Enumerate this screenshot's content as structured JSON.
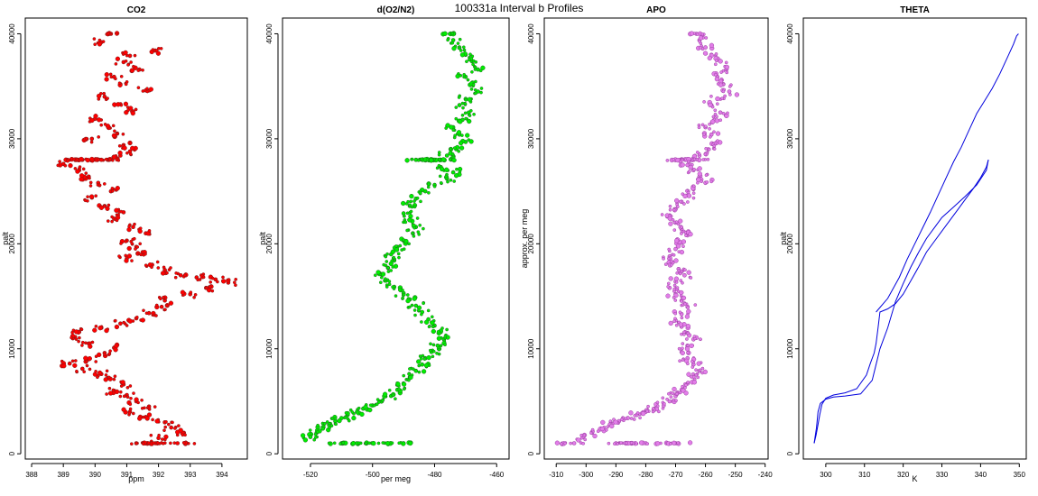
{
  "figure": {
    "title": "100331a   Interval b Profiles"
  },
  "chart_data": [
    {
      "type": "scatter",
      "title": "CO2",
      "xlabel": "ppm",
      "ylabel": "palt",
      "xlim": [
        387.8,
        394.8
      ],
      "ylim": [
        -500,
        41500
      ],
      "xticks": [
        388,
        389,
        390,
        391,
        392,
        393,
        394
      ],
      "yticks": [
        0,
        10000,
        20000,
        30000,
        40000
      ],
      "grid": false,
      "color": "#ff0000",
      "edge": "#7a1a1a",
      "x": [
        390.5,
        390.2,
        391.9,
        391.1,
        390.9,
        391.4,
        390.6,
        390.8,
        391.6,
        390.3,
        390.8,
        391.2,
        390.0,
        390.4,
        390.7,
        389.9,
        390.9,
        391.1,
        390.8,
        390.4,
        390.2,
        389.6,
        389.4,
        389.0,
        389.5,
        389.8,
        390.1,
        390.5,
        389.9,
        390.3,
        390.9,
        390.6,
        391.2,
        391.6,
        391.0,
        391.3,
        391.5,
        391.0,
        391.8,
        392.2,
        392.7,
        393.2,
        393.8,
        394.2,
        393.5,
        393.0,
        392.2,
        392.1,
        391.7,
        391.3,
        390.8,
        390.2,
        389.5,
        389.3,
        389.8,
        390.6,
        390.3,
        389.8,
        389.2,
        389.6,
        390.2,
        390.4,
        390.9,
        390.6,
        391.0,
        391.3,
        391.7,
        391.1,
        391.6,
        392.2,
        392.4,
        392.8,
        392.0,
        391.3,
        392.6,
        391.9
      ],
      "y": [
        40000,
        39200,
        38400,
        37900,
        37300,
        36600,
        35900,
        35200,
        34600,
        34000,
        33300,
        32600,
        31900,
        31200,
        30500,
        30000,
        29400,
        28800,
        28400,
        28000,
        28000,
        28000,
        28000,
        27600,
        27000,
        26400,
        25800,
        25000,
        24400,
        23600,
        23000,
        22400,
        21600,
        21000,
        20300,
        19700,
        19200,
        18600,
        18000,
        17500,
        17000,
        16800,
        16600,
        16300,
        15800,
        15200,
        14600,
        14000,
        13400,
        12900,
        12400,
        12000,
        11600,
        11000,
        10500,
        10100,
        9600,
        9000,
        8600,
        8100,
        7600,
        7200,
        6600,
        6000,
        5600,
        5000,
        4500,
        4000,
        3500,
        3000,
        2500,
        2000,
        1500,
        1000,
        1000,
        1000
      ]
    },
    {
      "type": "scatter",
      "title": "d(O2/N2)",
      "xlabel": "per meg",
      "ylabel": "palt",
      "xlim": [
        -529,
        -456
      ],
      "ylim": [
        -500,
        41500
      ],
      "xticks": [
        -520,
        -500,
        -480,
        -460
      ],
      "yticks": [
        0,
        10000,
        20000,
        30000,
        40000
      ],
      "grid": false,
      "color": "#00ee00",
      "edge": "#1f6a1f",
      "x": [
        -475,
        -474,
        -472,
        -470,
        -468,
        -466,
        -470,
        -468,
        -466,
        -470,
        -472,
        -469,
        -471,
        -474,
        -472,
        -470,
        -473,
        -476,
        -478,
        -480,
        -482,
        -484,
        -486,
        -478,
        -474,
        -476,
        -480,
        -483,
        -486,
        -488,
        -490,
        -488,
        -486,
        -487,
        -490,
        -492,
        -494,
        -493,
        -495,
        -497,
        -496,
        -493,
        -490,
        -488,
        -486,
        -484,
        -482,
        -480,
        -478,
        -477,
        -479,
        -481,
        -483,
        -484,
        -486,
        -488,
        -490,
        -492,
        -494,
        -497,
        -500,
        -503,
        -505,
        -508,
        -510,
        -512,
        -514,
        -516,
        -518,
        -520,
        -510,
        -500,
        -490,
        -505
      ],
      "y": [
        40000,
        39400,
        38700,
        38000,
        37400,
        36600,
        35900,
        35200,
        34500,
        33800,
        33200,
        32500,
        31800,
        31100,
        30400,
        29700,
        29000,
        28400,
        28000,
        28000,
        28000,
        28000,
        28000,
        27300,
        26800,
        26200,
        25600,
        25000,
        24300,
        23600,
        22900,
        22300,
        21600,
        21000,
        20300,
        19700,
        19000,
        18400,
        17700,
        17100,
        16500,
        15900,
        15300,
        14700,
        14100,
        13500,
        12800,
        12200,
        11600,
        10900,
        10300,
        9700,
        9100,
        8500,
        7900,
        7300,
        6700,
        6100,
        5500,
        5000,
        4600,
        4300,
        4000,
        3700,
        3400,
        3100,
        2800,
        2400,
        2000,
        1600,
        1000,
        1000,
        1000,
        1000
      ]
    },
    {
      "type": "scatter",
      "title": "APO",
      "xlabel": "",
      "ylabel": "approx. per meg",
      "xlim": [
        -314,
        -239
      ],
      "ylim": [
        -500,
        41500
      ],
      "xticks": [
        -310,
        -300,
        -290,
        -280,
        -270,
        -260,
        -250,
        -240
      ],
      "yticks": [
        0,
        10000,
        20000,
        30000,
        40000
      ],
      "grid": false,
      "color": "#e27de8",
      "edge": "#9b3fa3",
      "x": [
        -263,
        -262,
        -260,
        -258,
        -255,
        -253,
        -256,
        -254,
        -252,
        -256,
        -258,
        -255,
        -257,
        -260,
        -258,
        -256,
        -259,
        -262,
        -264,
        -266,
        -268,
        -266,
        -264,
        -262,
        -260,
        -264,
        -266,
        -268,
        -270,
        -272,
        -270,
        -268,
        -266,
        -268,
        -270,
        -272,
        -271,
        -269,
        -267,
        -270,
        -272,
        -270,
        -268,
        -266,
        -268,
        -270,
        -268,
        -266,
        -264,
        -266,
        -268,
        -266,
        -264,
        -262,
        -264,
        -266,
        -268,
        -270,
        -272,
        -274,
        -277,
        -280,
        -283,
        -286,
        -289,
        -292,
        -295,
        -298,
        -301,
        -304,
        -290,
        -280,
        -270,
        -285
      ],
      "y": [
        40000,
        39400,
        38700,
        38000,
        37400,
        36600,
        35900,
        35200,
        34500,
        33800,
        33200,
        32500,
        31800,
        31100,
        30400,
        29700,
        29000,
        28400,
        28000,
        28000,
        28000,
        27500,
        27000,
        26400,
        25800,
        25200,
        24600,
        24000,
        23300,
        22700,
        22000,
        21400,
        20800,
        20100,
        19500,
        18800,
        18200,
        17600,
        17000,
        16400,
        15800,
        15200,
        14600,
        14000,
        13300,
        12700,
        12100,
        11500,
        10900,
        10300,
        9700,
        9100,
        8500,
        7900,
        7300,
        6700,
        6100,
        5500,
        5000,
        4600,
        4300,
        4000,
        3700,
        3400,
        3100,
        2800,
        2400,
        2000,
        1600,
        1000,
        1000,
        1000,
        1000,
        1000
      ]
    },
    {
      "type": "line",
      "title": "THETA",
      "xlabel": "K",
      "ylabel": "palt",
      "xlim": [
        294.2,
        351.8
      ],
      "ylim": [
        -500,
        41500
      ],
      "xticks": [
        300,
        310,
        320,
        330,
        340,
        350
      ],
      "yticks": [
        0,
        10000,
        20000,
        30000,
        40000
      ],
      "grid": false,
      "color": "#0000dd",
      "series": [
        {
          "x": [
            297,
            297.6,
            298,
            298.6,
            300,
            302,
            305,
            309,
            312,
            313,
            314,
            316,
            318,
            320,
            322,
            324,
            326,
            328,
            330,
            333,
            336,
            339,
            341.5,
            342
          ],
          "y": [
            1000,
            2500,
            4000,
            4800,
            5200,
            5400,
            5500,
            5700,
            7000,
            8500,
            10000,
            12000,
            14500,
            16200,
            17800,
            19200,
            20500,
            21500,
            22500,
            23500,
            24500,
            25600,
            27000,
            28000
          ]
        },
        {
          "x": [
            342,
            341.5,
            340,
            338,
            336,
            334,
            332,
            330,
            328,
            326,
            324,
            322,
            320,
            318,
            316,
            314,
            313.5,
            313,
            312.5,
            311.5,
            310.5,
            308,
            305,
            302,
            300,
            299,
            298.5,
            298,
            297.5,
            297
          ],
          "y": [
            28000,
            27300,
            26300,
            25200,
            24200,
            23200,
            22200,
            21200,
            20200,
            19200,
            17800,
            16500,
            15200,
            14300,
            13800,
            13500,
            12000,
            10500,
            9600,
            8600,
            7500,
            6200,
            5800,
            5600,
            5300,
            4700,
            3800,
            2800,
            1800,
            1000
          ]
        },
        {
          "x": [
            313,
            316,
            319,
            321,
            323,
            325,
            327,
            329,
            331,
            333,
            335,
            337,
            339,
            341,
            343,
            345,
            347,
            348.5,
            349.3,
            349.8
          ],
          "y": [
            13500,
            14800,
            16800,
            18500,
            20000,
            21500,
            23000,
            24600,
            26200,
            27800,
            29200,
            30800,
            32400,
            33600,
            34800,
            36200,
            37800,
            39000,
            39800,
            40000
          ]
        }
      ]
    }
  ]
}
